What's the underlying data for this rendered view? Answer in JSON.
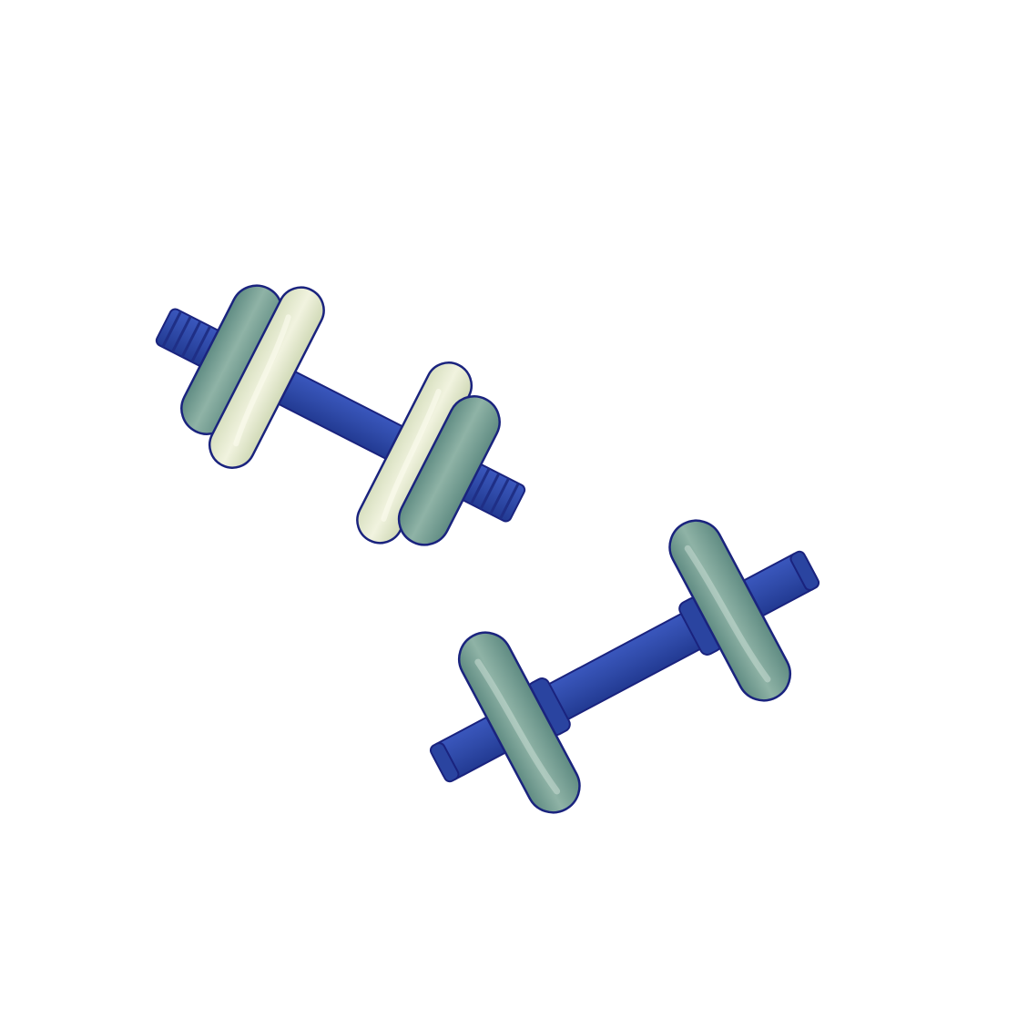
{
  "scene": {
    "objects": [
      {
        "icon": "dumbbell-icon",
        "plates_per_side": 2
      },
      {
        "icon": "dumbbell-icon",
        "plates_per_side": 1
      }
    ]
  },
  "colors": {
    "background": "#ffffff",
    "bar": "#2f4aa8",
    "bar_dark": "#1f2f86",
    "outline": "#1a237e",
    "plate_green": "#6f9a8e",
    "plate_green_light": "#9dbdb0",
    "plate_cream": "#dfe6c7",
    "plate_cream_light": "#f1f3df"
  }
}
